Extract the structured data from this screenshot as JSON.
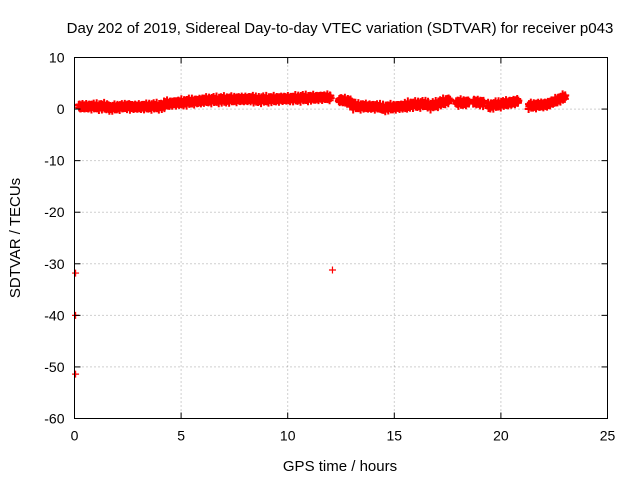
{
  "chart_data": {
    "type": "scatter",
    "title": "Day 202 of 2019, Sidereal Day-to-day VTEC variation (SDTVAR) for receiver p043",
    "xlabel": "GPS time / hours",
    "ylabel": "SDTVAR / TECUs",
    "xlim": [
      0,
      25
    ],
    "ylim": [
      -60,
      10
    ],
    "xticks": [
      0,
      5,
      10,
      15,
      20,
      25
    ],
    "yticks": [
      -60,
      -50,
      -40,
      -30,
      -20,
      -10,
      0,
      10
    ],
    "grid": true,
    "marker": "+",
    "color": "#ff0000",
    "segments": [
      {
        "x0": 0.2,
        "x1": 1.6,
        "y": [
          0.5,
          0.5
        ]
      },
      {
        "x0": 1.6,
        "x1": 2.6,
        "y": [
          0.2,
          0.6
        ]
      },
      {
        "x0": 2.6,
        "x1": 4.2,
        "y": [
          0.4,
          0.6
        ]
      },
      {
        "x0": 4.2,
        "x1": 6.0,
        "y": [
          1.0,
          1.6
        ]
      },
      {
        "x0": 6.0,
        "x1": 8.4,
        "y": [
          1.7,
          2.0
        ]
      },
      {
        "x0": 8.4,
        "x1": 12.0,
        "y": [
          1.8,
          2.3
        ]
      },
      {
        "x0": 12.4,
        "x1": 13.0,
        "y": [
          1.8,
          1.4
        ]
      },
      {
        "x0": 13.0,
        "x1": 14.4,
        "y": [
          0.6,
          0.4
        ]
      },
      {
        "x0": 14.4,
        "x1": 15.6,
        "y": [
          0.2,
          0.6
        ]
      },
      {
        "x0": 15.6,
        "x1": 16.6,
        "y": [
          0.8,
          1.0
        ]
      },
      {
        "x0": 16.7,
        "x1": 17.6,
        "y": [
          0.6,
          1.8
        ]
      },
      {
        "x0": 17.9,
        "x1": 18.5,
        "y": [
          1.2,
          1.3
        ]
      },
      {
        "x0": 18.7,
        "x1": 19.2,
        "y": [
          1.4,
          1.2
        ]
      },
      {
        "x0": 19.4,
        "x1": 20.8,
        "y": [
          0.6,
          1.5
        ]
      },
      {
        "x0": 21.3,
        "x1": 22.2,
        "y": [
          0.6,
          0.9
        ]
      },
      {
        "x0": 22.2,
        "x1": 23.0,
        "y": [
          1.0,
          2.4
        ]
      }
    ],
    "outliers": [
      {
        "x": 12.1,
        "y": -31.2
      },
      {
        "x": 0.05,
        "y": -31.8
      },
      {
        "x": 0.05,
        "y": -40.0
      },
      {
        "x": 0.05,
        "y": -51.4
      }
    ]
  }
}
